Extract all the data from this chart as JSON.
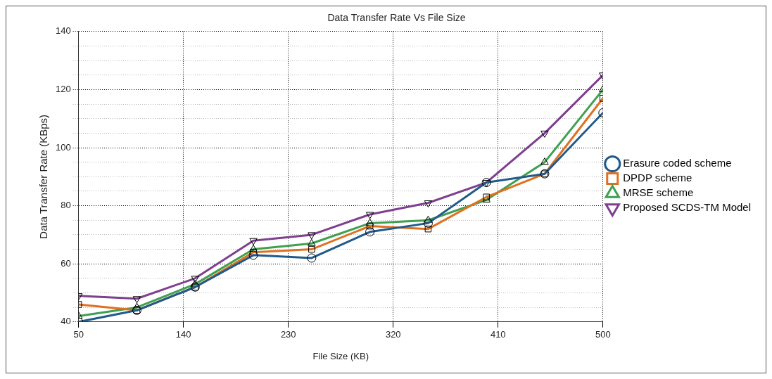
{
  "chart_data": {
    "type": "line",
    "title": "Data Transfer Rate Vs File Size",
    "xlabel": "File Size (KB)",
    "ylabel": "Data Transfer Rate (KBps)",
    "x": [
      50,
      100,
      150,
      200,
      250,
      300,
      350,
      400,
      450,
      500
    ],
    "series": [
      {
        "name": "Erasure coded scheme",
        "color": "#1f5a8a",
        "marker": "circle",
        "values": [
          40,
          44,
          52,
          63,
          62,
          71,
          74,
          88,
          91,
          112
        ]
      },
      {
        "name": "DPDP scheme",
        "color": "#e07020",
        "marker": "square",
        "values": [
          46,
          44,
          52,
          64,
          65,
          73,
          72,
          83,
          91,
          117
        ]
      },
      {
        "name": "MRSE scheme",
        "color": "#3fa050",
        "marker": "triangle",
        "values": [
          42,
          45,
          53,
          65,
          67,
          74,
          75,
          82,
          95,
          120
        ]
      },
      {
        "name": "Proposed SCDS-TM Model",
        "color": "#7f3f8f",
        "marker": "triangle-down",
        "values": [
          49,
          48,
          55,
          68,
          70,
          77,
          81,
          88,
          105,
          125
        ]
      }
    ],
    "xlim": [
      50,
      500
    ],
    "xticks": [
      50,
      140,
      230,
      320,
      410,
      500
    ],
    "ylim": [
      40,
      140
    ],
    "yticks": [
      40,
      {
        "value": 45,
        "label": null
      },
      {
        "value": 50,
        "label": null
      },
      {
        "value": 55,
        "label": null
      },
      60,
      {
        "value": 65,
        "label": null
      },
      {
        "value": 70,
        "label": null
      },
      {
        "value": 75,
        "label": null
      },
      80,
      {
        "value": 85,
        "label": null
      },
      {
        "value": 90,
        "label": null
      },
      {
        "value": 95,
        "label": null
      },
      100,
      {
        "value": 105,
        "label": null
      },
      {
        "value": 110,
        "label": null
      },
      {
        "value": 115,
        "label": null
      },
      120,
      {
        "value": 125,
        "label": null
      },
      {
        "value": 130,
        "label": null
      },
      {
        "value": 135,
        "label": null
      },
      140
    ],
    "grid": true,
    "legend": "right",
    "line_style": "solid"
  }
}
